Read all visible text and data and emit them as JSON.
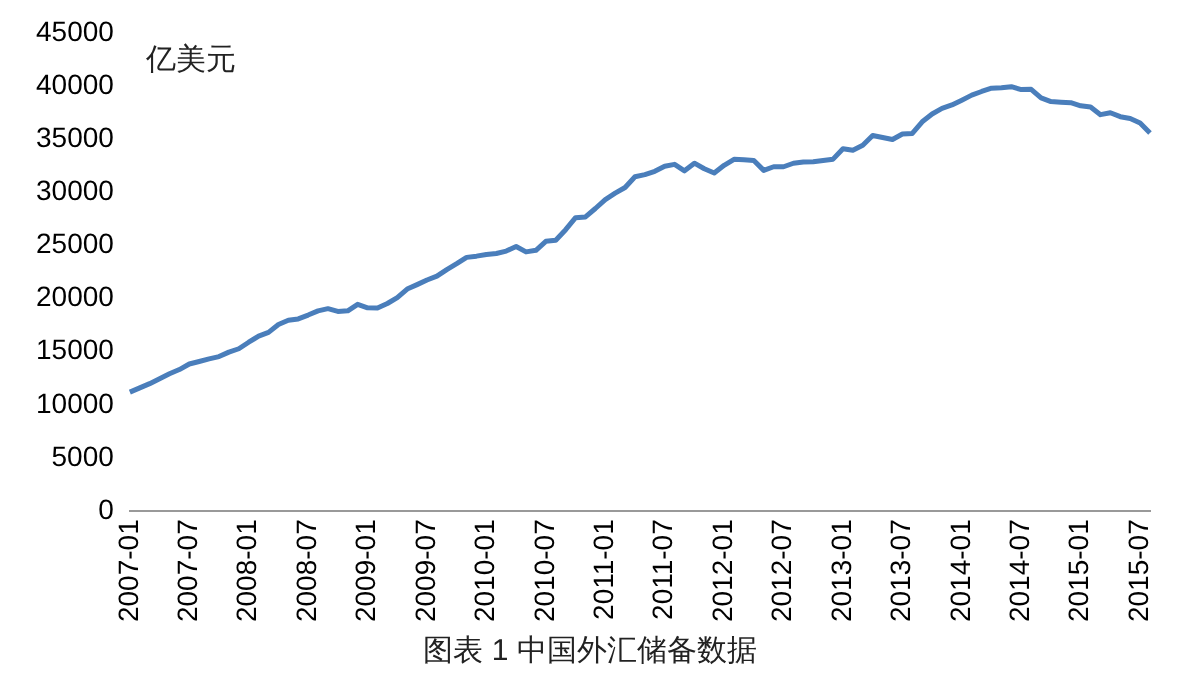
{
  "chart_data": {
    "type": "line",
    "ylabel": "亿美元",
    "annotations": [
      "图表 1 中国外汇储备数据"
    ],
    "categories": [
      "2007-01",
      null,
      null,
      null,
      null,
      null,
      "2007-07",
      null,
      null,
      null,
      null,
      null,
      "2008-01",
      null,
      null,
      null,
      null,
      null,
      "2008-07",
      null,
      null,
      null,
      null,
      null,
      "2009-01",
      null,
      null,
      null,
      null,
      null,
      "2009-07",
      null,
      null,
      null,
      null,
      null,
      "2010-01",
      null,
      null,
      null,
      null,
      null,
      "2010-07",
      null,
      null,
      null,
      null,
      null,
      "2011-01",
      null,
      null,
      null,
      null,
      null,
      "2011-07",
      null,
      null,
      null,
      null,
      null,
      "2012-01",
      null,
      null,
      null,
      null,
      null,
      "2012-07",
      null,
      null,
      null,
      null,
      null,
      "2013-01",
      null,
      null,
      null,
      null,
      null,
      "2013-07",
      null,
      null,
      null,
      null,
      null,
      "2014-01",
      null,
      null,
      null,
      null,
      null,
      "2014-07",
      null,
      null,
      null,
      null,
      null,
      "2015-01",
      null,
      null,
      null,
      null,
      null,
      "2015-07",
      null
    ],
    "series": [
      {
        "color": "#4a7ebb",
        "values": [
          11200,
          11600,
          12000,
          12466,
          12926,
          13326,
          13852,
          14086,
          14336,
          14548,
          14968,
          15283,
          15898,
          16471,
          16822,
          17566,
          17969,
          18088,
          18452,
          18841,
          19056,
          18797,
          18847,
          19460,
          19134,
          19122,
          19537,
          20089,
          20895,
          21316,
          21746,
          22108,
          22726,
          23283,
          23876,
          23992,
          24153,
          24241,
          24471,
          24905,
          24395,
          24543,
          25385,
          25483,
          26483,
          27609,
          27680,
          28473,
          29317,
          29914,
          30447,
          31465,
          31660,
          31975,
          32452,
          32625,
          32017,
          32738,
          32209,
          31811,
          32536,
          33097,
          33050,
          32989,
          32061,
          32400,
          32400,
          32730,
          32851,
          32874,
          32985,
          33116,
          34100,
          33954,
          34426,
          35345,
          35148,
          34967,
          35478,
          35530,
          36627,
          37366,
          37895,
          38213,
          38666,
          39137,
          39480,
          39788,
          39838,
          39932,
          39662,
          39688,
          38877,
          38529,
          38473,
          38430,
          38134,
          38015,
          37300,
          37481,
          37111,
          36938,
          36513,
          35574
        ]
      }
    ],
    "ylim": [
      0,
      45000
    ],
    "yticks": [
      0,
      5000,
      10000,
      15000,
      20000,
      25000,
      30000,
      35000,
      40000,
      45000
    ],
    "grid": false,
    "legend": false,
    "marker": "none",
    "line_style": "solid"
  }
}
